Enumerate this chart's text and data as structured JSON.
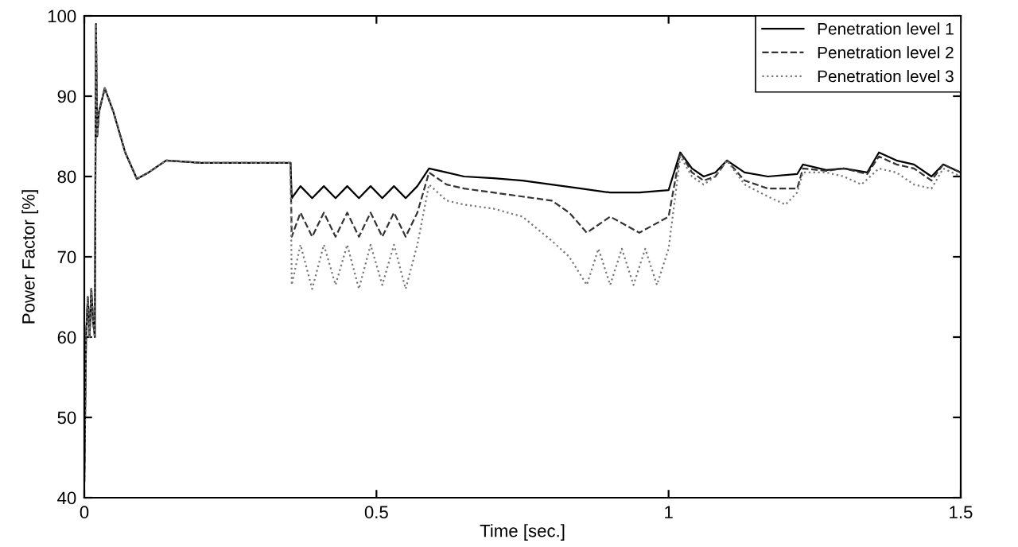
{
  "chart_data": {
    "type": "line",
    "xlabel": "Time [sec.]",
    "ylabel": "Power Factor [%]",
    "xlim": [
      0,
      1.5
    ],
    "ylim": [
      40,
      100
    ],
    "xticks": [
      0,
      0.5,
      1,
      1.5
    ],
    "yticks": [
      40,
      50,
      60,
      70,
      80,
      90,
      100
    ],
    "grid": false,
    "legend": "top right",
    "marker": "none",
    "series": [
      {
        "name": "Penetration level 1",
        "color": "#000000",
        "line_style": "solid",
        "x": [
          0,
          0.003,
          0.006,
          0.009,
          0.012,
          0.015,
          0.018,
          0.02,
          0.022,
          0.025,
          0.035,
          0.05,
          0.07,
          0.09,
          0.11,
          0.14,
          0.2,
          0.353,
          0.355,
          0.37,
          0.39,
          0.41,
          0.43,
          0.45,
          0.47,
          0.49,
          0.51,
          0.53,
          0.55,
          0.57,
          0.59,
          0.62,
          0.65,
          0.7,
          0.75,
          0.8,
          0.85,
          0.9,
          0.95,
          1.0,
          1.02,
          1.04,
          1.06,
          1.08,
          1.1,
          1.13,
          1.17,
          1.22,
          1.23,
          1.27,
          1.3,
          1.34,
          1.36,
          1.39,
          1.42,
          1.45,
          1.47,
          1.5
        ],
        "values": [
          42,
          60,
          65,
          60,
          66,
          62,
          60,
          99,
          85,
          88,
          91,
          88,
          83,
          79.7,
          80.5,
          82,
          81.7,
          81.7,
          77.3,
          78.8,
          77.3,
          78.8,
          77.3,
          78.8,
          77.3,
          78.8,
          77.3,
          78.8,
          77.3,
          78.8,
          81,
          80.5,
          80,
          79.8,
          79.5,
          79,
          78.5,
          78,
          78,
          78.3,
          83,
          81,
          80,
          80.5,
          82,
          80.5,
          80,
          80.3,
          81.5,
          80.8,
          81,
          80.5,
          83,
          82,
          81.5,
          80,
          81.5,
          80.5
        ]
      },
      {
        "name": "Penetration level 2",
        "color": "#333333",
        "line_style": "dashed",
        "x": [
          0,
          0.003,
          0.006,
          0.009,
          0.012,
          0.015,
          0.018,
          0.02,
          0.022,
          0.025,
          0.035,
          0.05,
          0.07,
          0.09,
          0.11,
          0.14,
          0.2,
          0.353,
          0.355,
          0.37,
          0.39,
          0.41,
          0.43,
          0.45,
          0.47,
          0.49,
          0.51,
          0.53,
          0.55,
          0.57,
          0.59,
          0.62,
          0.65,
          0.7,
          0.75,
          0.8,
          0.83,
          0.86,
          0.9,
          0.95,
          1.0,
          1.02,
          1.04,
          1.06,
          1.08,
          1.1,
          1.13,
          1.17,
          1.22,
          1.23,
          1.27,
          1.3,
          1.34,
          1.36,
          1.39,
          1.42,
          1.45,
          1.47,
          1.5
        ],
        "values": [
          42,
          60,
          65,
          60,
          66,
          62,
          60,
          99,
          85,
          88,
          91,
          88,
          83,
          79.7,
          80.5,
          82,
          81.7,
          81.7,
          72.5,
          75.5,
          72.5,
          75.5,
          72.5,
          75.5,
          72.5,
          75.5,
          72.5,
          75.5,
          72.5,
          75.5,
          80.5,
          79,
          78.5,
          78,
          77.5,
          77,
          75.5,
          73,
          75,
          73,
          75,
          83,
          80.5,
          79.5,
          80,
          82,
          79.5,
          78.5,
          78.5,
          81,
          80.7,
          81,
          80.3,
          82.5,
          81.5,
          81,
          79.5,
          81.5,
          80.5
        ]
      },
      {
        "name": "Penetration level 3",
        "color": "#777777",
        "line_style": "dotted",
        "x": [
          0,
          0.003,
          0.006,
          0.009,
          0.012,
          0.015,
          0.018,
          0.02,
          0.022,
          0.025,
          0.035,
          0.05,
          0.07,
          0.09,
          0.11,
          0.14,
          0.2,
          0.353,
          0.355,
          0.37,
          0.39,
          0.41,
          0.43,
          0.45,
          0.47,
          0.49,
          0.51,
          0.53,
          0.55,
          0.57,
          0.59,
          0.62,
          0.65,
          0.7,
          0.75,
          0.8,
          0.83,
          0.86,
          0.88,
          0.9,
          0.92,
          0.94,
          0.96,
          0.98,
          1.0,
          1.02,
          1.04,
          1.06,
          1.08,
          1.1,
          1.13,
          1.17,
          1.2,
          1.22,
          1.23,
          1.27,
          1.3,
          1.33,
          1.36,
          1.39,
          1.42,
          1.45,
          1.47,
          1.5
        ],
        "values": [
          42,
          60,
          65,
          60,
          66,
          62,
          60,
          99,
          85,
          88,
          91,
          88,
          83,
          79.7,
          80.5,
          82,
          81.7,
          81.7,
          66.5,
          71.5,
          66,
          71.5,
          66.5,
          71.5,
          66,
          71.5,
          66.5,
          71.5,
          66,
          71.5,
          79,
          77,
          76.5,
          76,
          75,
          72,
          70,
          66.5,
          71,
          66.5,
          71,
          66.5,
          71,
          66.5,
          71,
          82.5,
          80,
          79,
          80,
          82,
          79,
          77.5,
          76.5,
          78,
          80.5,
          80.5,
          80,
          79,
          81,
          80.5,
          79,
          78.5,
          81,
          80
        ]
      }
    ]
  }
}
